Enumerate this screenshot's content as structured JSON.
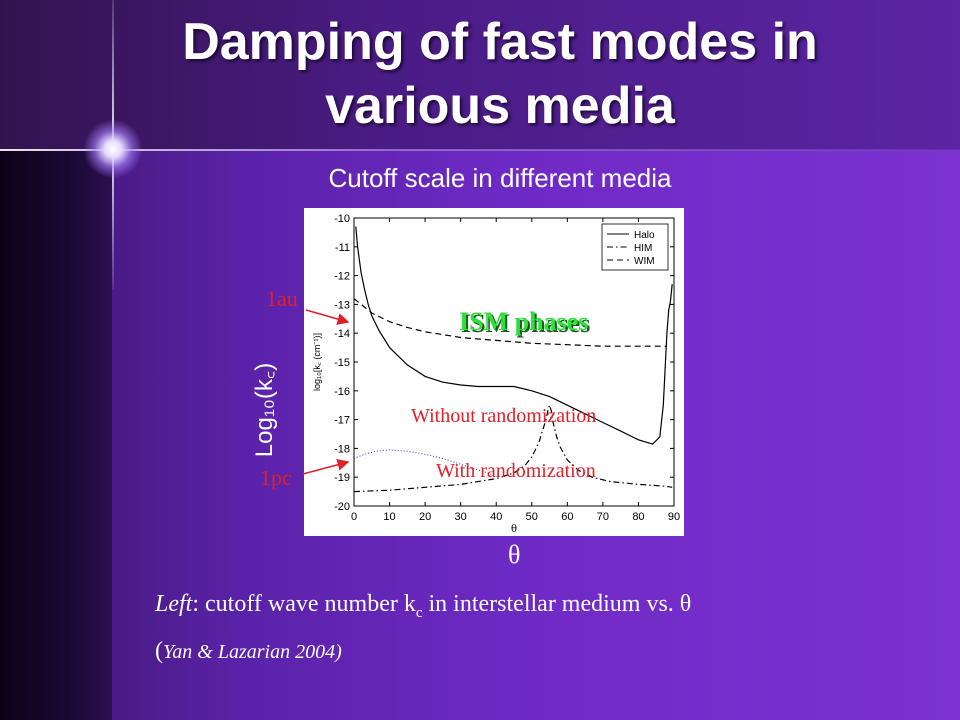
{
  "slide": {
    "title_line1": "Damping of fast modes in",
    "title_line2": "various media",
    "subtitle": "Cutoff scale in different media",
    "outer_ylabel": "Log₁₀(k꜀)",
    "theta_label": "θ",
    "caption": {
      "left_word": "Left",
      "text": ": cutoff wave number k",
      "sub": "c",
      "text2": " in interstellar medium vs. θ",
      "cite_open": "(",
      "cite": "Yan & Lazarian 2004)"
    }
  },
  "annotations": {
    "au": "1au",
    "pc": "1pc",
    "ism": "ISM phases",
    "without": "Without randomization",
    "with": "With randomization"
  },
  "colors": {
    "annotation_red": "#e0202a",
    "ism_green": "#2de03a",
    "randomization_blue": "#2b3bd8"
  },
  "chart_data": {
    "type": "line",
    "xlabel": "θ",
    "ylabel": "log₁₀[k꜀ (cm⁻¹)]",
    "xlim": [
      0,
      90
    ],
    "ylim": [
      -20,
      -10
    ],
    "xticks": [
      0,
      10,
      20,
      30,
      40,
      50,
      60,
      70,
      80,
      90
    ],
    "yticks": [
      -10,
      -11,
      -12,
      -13,
      -14,
      -15,
      -16,
      -17,
      -18,
      -19,
      -20
    ],
    "legend_position": "top-right",
    "series": [
      {
        "name": "Halo",
        "style": "solid",
        "x": [
          0.5,
          1,
          2,
          3,
          4,
          5,
          7,
          10,
          15,
          20,
          25,
          30,
          35,
          40,
          45,
          50,
          55,
          60,
          65,
          70,
          75,
          80,
          84,
          86,
          87,
          88,
          88.5,
          89,
          89.5
        ],
        "y": [
          -10.3,
          -11.0,
          -11.9,
          -12.5,
          -13.0,
          -13.4,
          -13.9,
          -14.5,
          -15.1,
          -15.5,
          -15.7,
          -15.8,
          -15.85,
          -15.85,
          -15.85,
          -16.0,
          -16.2,
          -16.5,
          -16.8,
          -17.1,
          -17.4,
          -17.7,
          -17.85,
          -17.6,
          -16.5,
          -14.0,
          -13.2,
          -12.9,
          -12.3
        ]
      },
      {
        "name": "HIM",
        "style": "dashdot",
        "x": [
          0,
          10,
          20,
          30,
          40,
          45,
          48,
          50,
          52,
          53,
          54,
          54.5,
          55,
          55.5,
          56,
          57,
          58,
          60,
          63,
          67,
          72,
          80,
          86,
          88,
          89.5
        ],
        "y": [
          -19.5,
          -19.45,
          -19.35,
          -19.25,
          -19.05,
          -18.85,
          -18.6,
          -18.3,
          -17.8,
          -17.4,
          -17.0,
          -16.7,
          -16.5,
          -16.7,
          -17.1,
          -17.6,
          -17.95,
          -18.4,
          -18.75,
          -19.0,
          -19.15,
          -19.25,
          -19.3,
          -19.32,
          -19.35
        ]
      },
      {
        "name": "WIM",
        "style": "dashed",
        "x": [
          0,
          5,
          10,
          15,
          20,
          25,
          30,
          35,
          40,
          50,
          60,
          70,
          80,
          88
        ],
        "y": [
          -12.8,
          -13.3,
          -13.6,
          -13.8,
          -13.95,
          -14.05,
          -14.15,
          -14.2,
          -14.25,
          -14.35,
          -14.4,
          -14.45,
          -14.45,
          -14.45
        ]
      },
      {
        "name": "",
        "style": "dotted-blue",
        "x": [
          0,
          3,
          6,
          10,
          15,
          20,
          25,
          30,
          35,
          40
        ],
        "y": [
          -18.35,
          -18.2,
          -18.1,
          -18.05,
          -18.1,
          -18.2,
          -18.35,
          -18.55,
          -18.75,
          -18.95
        ]
      }
    ]
  }
}
